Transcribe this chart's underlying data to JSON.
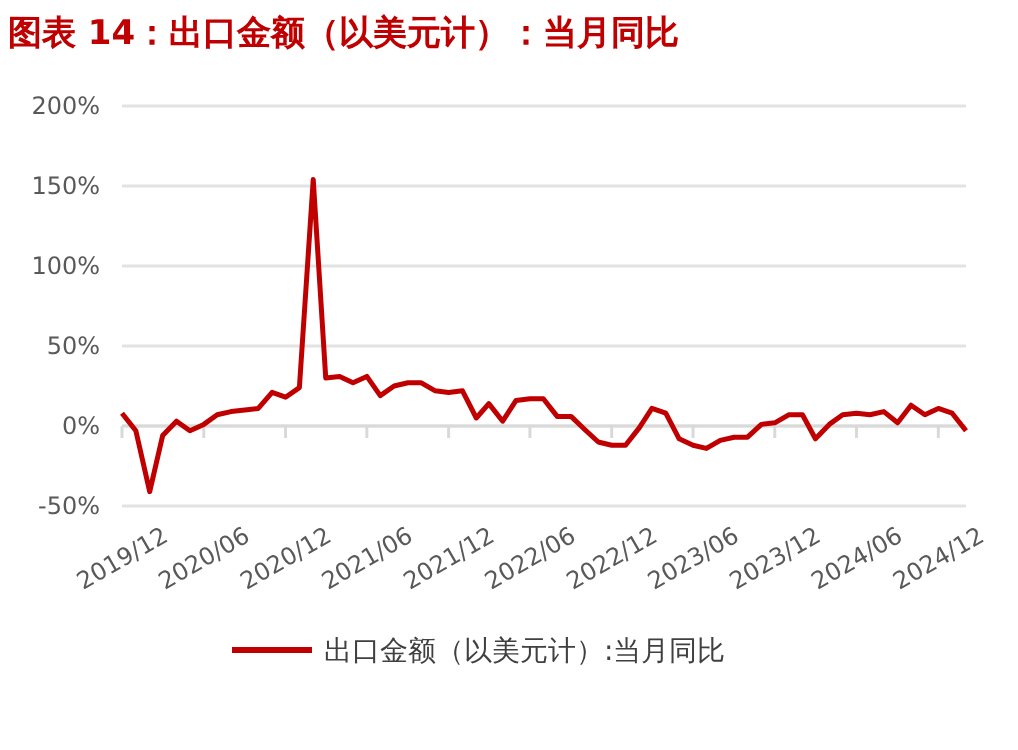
{
  "chart_data": {
    "type": "line",
    "title": "图表 14：出口金额（以美元计）：当月同比",
    "x": [
      "2019-12",
      "2020-01",
      "2020-02",
      "2020-03",
      "2020-04",
      "2020-05",
      "2020-06",
      "2020-07",
      "2020-08",
      "2020-09",
      "2020-10",
      "2020-11",
      "2020-12",
      "2021-01",
      "2021-02",
      "2021-03",
      "2021-04",
      "2021-05",
      "2021-06",
      "2021-07",
      "2021-08",
      "2021-09",
      "2021-10",
      "2021-11",
      "2021-12",
      "2022-01",
      "2022-02",
      "2022-03",
      "2022-04",
      "2022-05",
      "2022-06",
      "2022-07",
      "2022-08",
      "2022-09",
      "2022-10",
      "2022-11",
      "2022-12",
      "2023-01",
      "2023-02",
      "2023-03",
      "2023-04",
      "2023-05",
      "2023-06",
      "2023-07",
      "2023-08",
      "2023-09",
      "2023-10",
      "2023-11",
      "2023-12",
      "2024-01",
      "2024-02",
      "2024-03",
      "2024-04",
      "2024-05",
      "2024-06",
      "2024-07",
      "2024-08",
      "2024-09",
      "2024-10",
      "2024-11",
      "2024-12",
      "2025-01",
      "2025-02"
    ],
    "series": [
      {
        "name": "出口金额（以美元计）:当月同比",
        "color": "#c00000",
        "values": [
          8,
          -3,
          -41,
          -6,
          3,
          -3,
          1,
          7,
          9,
          10,
          11,
          21,
          18,
          24,
          154,
          30,
          31,
          27,
          31,
          19,
          25,
          27,
          27,
          22,
          21,
          22,
          5,
          14,
          3,
          16,
          17,
          17,
          6,
          6,
          -2,
          -10,
          -12,
          -12,
          -1,
          11,
          8,
          -8,
          -12,
          -14,
          -9,
          -7,
          -7,
          1,
          2,
          7,
          7,
          -8,
          1,
          7,
          8,
          7,
          9,
          2,
          13,
          7,
          11,
          8,
          -3
        ]
      }
    ],
    "xlim": [
      "2019-12",
      "2025-02"
    ],
    "xticks": [
      {
        "value": "2019-12",
        "label": "2019/12"
      },
      {
        "value": "2020-06",
        "label": "2020/06"
      },
      {
        "value": "2020-12",
        "label": "2020/12"
      },
      {
        "value": "2021-06",
        "label": "2021/06"
      },
      {
        "value": "2021-12",
        "label": "2021/12"
      },
      {
        "value": "2022-06",
        "label": "2022/06"
      },
      {
        "value": "2022-12",
        "label": "2022/12"
      },
      {
        "value": "2023-06",
        "label": "2023/06"
      },
      {
        "value": "2023-12",
        "label": "2023/12"
      },
      {
        "value": "2024-06",
        "label": "2024/06"
      },
      {
        "value": "2024-12",
        "label": "2024/12"
      }
    ],
    "ylim": [
      -50,
      200
    ],
    "yticks": [
      {
        "value": -50,
        "label": "-50%"
      },
      {
        "value": 0,
        "label": "0%"
      },
      {
        "value": 50,
        "label": "50%"
      },
      {
        "value": 100,
        "label": "100%"
      },
      {
        "value": 150,
        "label": "150%"
      },
      {
        "value": 200,
        "label": "200%"
      }
    ],
    "grid": "y",
    "legend": "bottom",
    "marker": "none",
    "line_style": "solid"
  }
}
